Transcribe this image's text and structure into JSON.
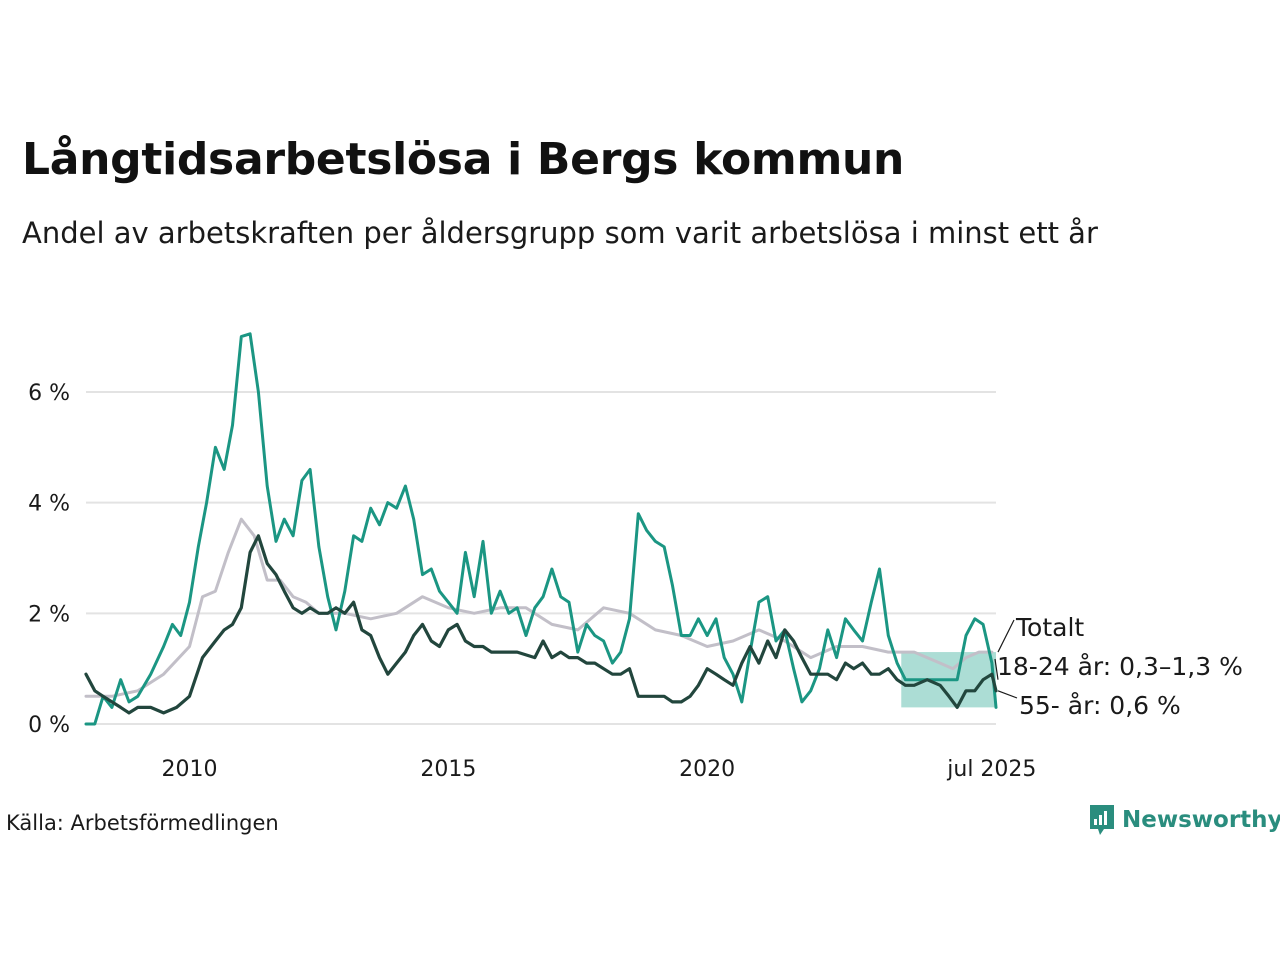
{
  "header": {
    "title": "Långtidsarbetslösa i Bergs kommun",
    "subtitle": "Andel av arbetskraften per åldersgrupp som varit arbetslösa i minst ett år"
  },
  "footer": {
    "source": "Källa: Arbetsförmedlingen",
    "brand": "Newsworthy"
  },
  "colors": {
    "young": "#1b9683",
    "old": "#22463d",
    "total": "#c2bfc8",
    "band": "#a8dbd3",
    "grid": "#e3e3e3"
  },
  "chart_data": {
    "type": "line",
    "xlim": [
      2008.0,
      2025.58
    ],
    "ylim": [
      0,
      7.3
    ],
    "y_ticks": [
      {
        "value": 0,
        "label": "0 %"
      },
      {
        "value": 2,
        "label": "2 %"
      },
      {
        "value": 4,
        "label": "4 %"
      },
      {
        "value": 6,
        "label": "6 %"
      }
    ],
    "x_ticks": [
      {
        "value": 2010,
        "label": "2010"
      },
      {
        "value": 2015,
        "label": "2015"
      },
      {
        "value": 2020,
        "label": "2020"
      },
      {
        "value": 2025.5,
        "label": "jul 2025"
      }
    ],
    "band": {
      "x_start": 2023.75,
      "x_end": 2025.58,
      "y_low": 0.3,
      "y_high": 1.3
    },
    "series": [
      {
        "name": "Totalt",
        "key": "total",
        "points": [
          [
            2008.0,
            0.5
          ],
          [
            2008.5,
            0.5
          ],
          [
            2009.0,
            0.6
          ],
          [
            2009.5,
            0.9
          ],
          [
            2010.0,
            1.4
          ],
          [
            2010.25,
            2.3
          ],
          [
            2010.5,
            2.4
          ],
          [
            2010.75,
            3.1
          ],
          [
            2011.0,
            3.7
          ],
          [
            2011.25,
            3.4
          ],
          [
            2011.5,
            2.6
          ],
          [
            2011.75,
            2.6
          ],
          [
            2012.0,
            2.3
          ],
          [
            2012.25,
            2.2
          ],
          [
            2012.5,
            2.0
          ],
          [
            2012.75,
            2.0
          ],
          [
            2013.0,
            2.0
          ],
          [
            2013.5,
            1.9
          ],
          [
            2014.0,
            2.0
          ],
          [
            2014.5,
            2.3
          ],
          [
            2015.0,
            2.1
          ],
          [
            2015.5,
            2.0
          ],
          [
            2016.0,
            2.1
          ],
          [
            2016.5,
            2.1
          ],
          [
            2017.0,
            1.8
          ],
          [
            2017.5,
            1.7
          ],
          [
            2018.0,
            2.1
          ],
          [
            2018.5,
            2.0
          ],
          [
            2019.0,
            1.7
          ],
          [
            2019.5,
            1.6
          ],
          [
            2020.0,
            1.4
          ],
          [
            2020.5,
            1.5
          ],
          [
            2021.0,
            1.7
          ],
          [
            2021.5,
            1.5
          ],
          [
            2022.0,
            1.2
          ],
          [
            2022.5,
            1.4
          ],
          [
            2023.0,
            1.4
          ],
          [
            2023.5,
            1.3
          ],
          [
            2024.0,
            1.3
          ],
          [
            2024.5,
            1.1
          ],
          [
            2024.75,
            1.0
          ],
          [
            2025.0,
            1.2
          ],
          [
            2025.25,
            1.3
          ],
          [
            2025.5,
            1.3
          ]
        ]
      },
      {
        "name": "18-24 år",
        "key": "young",
        "points": [
          [
            2008.0,
            0.0
          ],
          [
            2008.17,
            0.0
          ],
          [
            2008.33,
            0.5
          ],
          [
            2008.5,
            0.3
          ],
          [
            2008.67,
            0.8
          ],
          [
            2008.83,
            0.4
          ],
          [
            2009.0,
            0.5
          ],
          [
            2009.25,
            0.9
          ],
          [
            2009.5,
            1.4
          ],
          [
            2009.67,
            1.8
          ],
          [
            2009.83,
            1.6
          ],
          [
            2010.0,
            2.2
          ],
          [
            2010.17,
            3.2
          ],
          [
            2010.33,
            4.0
          ],
          [
            2010.5,
            5.0
          ],
          [
            2010.67,
            4.6
          ],
          [
            2010.83,
            5.4
          ],
          [
            2011.0,
            7.0
          ],
          [
            2011.17,
            7.05
          ],
          [
            2011.33,
            6.0
          ],
          [
            2011.5,
            4.3
          ],
          [
            2011.67,
            3.3
          ],
          [
            2011.83,
            3.7
          ],
          [
            2012.0,
            3.4
          ],
          [
            2012.17,
            4.4
          ],
          [
            2012.33,
            4.6
          ],
          [
            2012.5,
            3.2
          ],
          [
            2012.67,
            2.3
          ],
          [
            2012.83,
            1.7
          ],
          [
            2013.0,
            2.4
          ],
          [
            2013.17,
            3.4
          ],
          [
            2013.33,
            3.3
          ],
          [
            2013.5,
            3.9
          ],
          [
            2013.67,
            3.6
          ],
          [
            2013.83,
            4.0
          ],
          [
            2014.0,
            3.9
          ],
          [
            2014.17,
            4.3
          ],
          [
            2014.33,
            3.7
          ],
          [
            2014.5,
            2.7
          ],
          [
            2014.67,
            2.8
          ],
          [
            2014.83,
            2.4
          ],
          [
            2015.0,
            2.2
          ],
          [
            2015.17,
            2.0
          ],
          [
            2015.33,
            3.1
          ],
          [
            2015.5,
            2.3
          ],
          [
            2015.67,
            3.3
          ],
          [
            2015.83,
            2.0
          ],
          [
            2016.0,
            2.4
          ],
          [
            2016.17,
            2.0
          ],
          [
            2016.33,
            2.1
          ],
          [
            2016.5,
            1.6
          ],
          [
            2016.67,
            2.1
          ],
          [
            2016.83,
            2.3
          ],
          [
            2017.0,
            2.8
          ],
          [
            2017.17,
            2.3
          ],
          [
            2017.33,
            2.2
          ],
          [
            2017.5,
            1.3
          ],
          [
            2017.67,
            1.8
          ],
          [
            2017.83,
            1.6
          ],
          [
            2018.0,
            1.5
          ],
          [
            2018.17,
            1.1
          ],
          [
            2018.33,
            1.3
          ],
          [
            2018.5,
            1.9
          ],
          [
            2018.67,
            3.8
          ],
          [
            2018.83,
            3.5
          ],
          [
            2019.0,
            3.3
          ],
          [
            2019.17,
            3.2
          ],
          [
            2019.33,
            2.5
          ],
          [
            2019.5,
            1.6
          ],
          [
            2019.67,
            1.6
          ],
          [
            2019.83,
            1.9
          ],
          [
            2020.0,
            1.6
          ],
          [
            2020.17,
            1.9
          ],
          [
            2020.33,
            1.2
          ],
          [
            2020.5,
            0.9
          ],
          [
            2020.67,
            0.4
          ],
          [
            2020.83,
            1.3
          ],
          [
            2021.0,
            2.2
          ],
          [
            2021.17,
            2.3
          ],
          [
            2021.33,
            1.5
          ],
          [
            2021.5,
            1.7
          ],
          [
            2021.67,
            1.0
          ],
          [
            2021.83,
            0.4
          ],
          [
            2022.0,
            0.6
          ],
          [
            2022.17,
            1.0
          ],
          [
            2022.33,
            1.7
          ],
          [
            2022.5,
            1.2
          ],
          [
            2022.67,
            1.9
          ],
          [
            2022.83,
            1.7
          ],
          [
            2023.0,
            1.5
          ],
          [
            2023.17,
            2.2
          ],
          [
            2023.33,
            2.8
          ],
          [
            2023.5,
            1.6
          ],
          [
            2023.67,
            1.1
          ],
          [
            2023.83,
            0.8
          ],
          [
            2024.0,
            0.8
          ],
          [
            2024.5,
            0.8
          ],
          [
            2024.83,
            0.8
          ],
          [
            2025.0,
            1.6
          ],
          [
            2025.17,
            1.9
          ],
          [
            2025.33,
            1.8
          ],
          [
            2025.5,
            1.1
          ],
          [
            2025.58,
            0.3
          ]
        ]
      },
      {
        "name": "55- år",
        "key": "old",
        "points": [
          [
            2008.0,
            0.9
          ],
          [
            2008.17,
            0.6
          ],
          [
            2008.33,
            0.5
          ],
          [
            2008.5,
            0.4
          ],
          [
            2008.67,
            0.3
          ],
          [
            2008.83,
            0.2
          ],
          [
            2009.0,
            0.3
          ],
          [
            2009.25,
            0.3
          ],
          [
            2009.5,
            0.2
          ],
          [
            2009.75,
            0.3
          ],
          [
            2010.0,
            0.5
          ],
          [
            2010.25,
            1.2
          ],
          [
            2010.5,
            1.5
          ],
          [
            2010.67,
            1.7
          ],
          [
            2010.83,
            1.8
          ],
          [
            2011.0,
            2.1
          ],
          [
            2011.17,
            3.1
          ],
          [
            2011.33,
            3.4
          ],
          [
            2011.5,
            2.9
          ],
          [
            2011.67,
            2.7
          ],
          [
            2011.83,
            2.4
          ],
          [
            2012.0,
            2.1
          ],
          [
            2012.17,
            2.0
          ],
          [
            2012.33,
            2.1
          ],
          [
            2012.5,
            2.0
          ],
          [
            2012.67,
            2.0
          ],
          [
            2012.83,
            2.1
          ],
          [
            2013.0,
            2.0
          ],
          [
            2013.17,
            2.2
          ],
          [
            2013.33,
            1.7
          ],
          [
            2013.5,
            1.6
          ],
          [
            2013.67,
            1.2
          ],
          [
            2013.83,
            0.9
          ],
          [
            2014.0,
            1.1
          ],
          [
            2014.17,
            1.3
          ],
          [
            2014.33,
            1.6
          ],
          [
            2014.5,
            1.8
          ],
          [
            2014.67,
            1.5
          ],
          [
            2014.83,
            1.4
          ],
          [
            2015.0,
            1.7
          ],
          [
            2015.17,
            1.8
          ],
          [
            2015.33,
            1.5
          ],
          [
            2015.5,
            1.4
          ],
          [
            2015.67,
            1.4
          ],
          [
            2015.83,
            1.3
          ],
          [
            2016.0,
            1.3
          ],
          [
            2016.33,
            1.3
          ],
          [
            2016.67,
            1.2
          ],
          [
            2016.83,
            1.5
          ],
          [
            2017.0,
            1.2
          ],
          [
            2017.17,
            1.3
          ],
          [
            2017.33,
            1.2
          ],
          [
            2017.5,
            1.2
          ],
          [
            2017.67,
            1.1
          ],
          [
            2017.83,
            1.1
          ],
          [
            2018.0,
            1.0
          ],
          [
            2018.17,
            0.9
          ],
          [
            2018.33,
            0.9
          ],
          [
            2018.5,
            1.0
          ],
          [
            2018.67,
            0.5
          ],
          [
            2018.83,
            0.5
          ],
          [
            2019.0,
            0.5
          ],
          [
            2019.17,
            0.5
          ],
          [
            2019.33,
            0.4
          ],
          [
            2019.5,
            0.4
          ],
          [
            2019.67,
            0.5
          ],
          [
            2019.83,
            0.7
          ],
          [
            2020.0,
            1.0
          ],
          [
            2020.17,
            0.9
          ],
          [
            2020.33,
            0.8
          ],
          [
            2020.5,
            0.7
          ],
          [
            2020.67,
            1.1
          ],
          [
            2020.83,
            1.4
          ],
          [
            2021.0,
            1.1
          ],
          [
            2021.17,
            1.5
          ],
          [
            2021.33,
            1.2
          ],
          [
            2021.5,
            1.7
          ],
          [
            2021.67,
            1.5
          ],
          [
            2021.83,
            1.2
          ],
          [
            2022.0,
            0.9
          ],
          [
            2022.17,
            0.9
          ],
          [
            2022.33,
            0.9
          ],
          [
            2022.5,
            0.8
          ],
          [
            2022.67,
            1.1
          ],
          [
            2022.83,
            1.0
          ],
          [
            2023.0,
            1.1
          ],
          [
            2023.17,
            0.9
          ],
          [
            2023.33,
            0.9
          ],
          [
            2023.5,
            1.0
          ],
          [
            2023.67,
            0.8
          ],
          [
            2023.83,
            0.7
          ],
          [
            2024.0,
            0.7
          ],
          [
            2024.25,
            0.8
          ],
          [
            2024.5,
            0.7
          ],
          [
            2024.67,
            0.5
          ],
          [
            2024.83,
            0.3
          ],
          [
            2025.0,
            0.6
          ],
          [
            2025.17,
            0.6
          ],
          [
            2025.33,
            0.8
          ],
          [
            2025.5,
            0.9
          ],
          [
            2025.58,
            0.6
          ]
        ]
      }
    ],
    "annotations": [
      {
        "key": "total",
        "label": "Totalt",
        "anchor_value": 1.3
      },
      {
        "key": "young",
        "label": "18-24 år: 0,3–1,3 %",
        "anchor_value": 0.8
      },
      {
        "key": "old",
        "label": "55- år: 0,6 %",
        "anchor_value": 0.6
      }
    ]
  }
}
